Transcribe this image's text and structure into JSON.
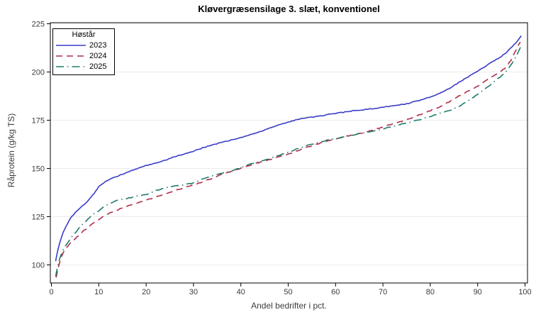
{
  "chart_data": {
    "type": "line",
    "title": "Kløvergræsensilage 3. slæt, konventionel",
    "xlabel": "Andel bedrifter i pct.",
    "ylabel": "Råprotein (g/kg TS)",
    "xlim": [
      0,
      100
    ],
    "ylim": [
      90,
      226
    ],
    "xticks": [
      0,
      10,
      20,
      30,
      40,
      50,
      60,
      70,
      80,
      90,
      100
    ],
    "yticks": [
      100,
      125,
      150,
      175,
      200,
      225
    ],
    "grid": "horizontal-only",
    "gridline_color": "#ebebeb",
    "frame_color": "#000000",
    "legend_position": "inside-top-left",
    "legend_title": "Høstår",
    "series": [
      {
        "name": "2023",
        "color": "#3b3bc8",
        "dash": "solid",
        "x": [
          0.9,
          1,
          1.3,
          1.7,
          2,
          2.5,
          3,
          4,
          5,
          6,
          7,
          8,
          9,
          10,
          11,
          12,
          13,
          15,
          17,
          20,
          23,
          26,
          30,
          33,
          36,
          40,
          44,
          48,
          52,
          56,
          60,
          64,
          68,
          72,
          75,
          78,
          80,
          82,
          84,
          86,
          88,
          90,
          92,
          94,
          95,
          96,
          97,
          98,
          98.7,
          99.2
        ],
        "y": [
          102,
          103.5,
          107,
          111,
          113.5,
          117,
          119.5,
          124,
          127,
          129.5,
          131.5,
          134,
          137,
          140.5,
          142.5,
          144,
          145,
          147,
          149,
          151.5,
          153.5,
          156,
          159,
          161.5,
          163.5,
          166,
          169,
          172.5,
          175.5,
          177,
          178.5,
          180,
          181,
          182.5,
          183.5,
          185.5,
          187,
          189,
          191.5,
          194.5,
          197.5,
          200.5,
          203.5,
          206.5,
          208,
          210,
          212.5,
          215,
          217,
          218.8
        ]
      },
      {
        "name": "2024",
        "color": "#b02c48",
        "dash": "dashed",
        "x": [
          1,
          1.3,
          1.7,
          2,
          2.5,
          3,
          4,
          5,
          6,
          7,
          8,
          9,
          10,
          12,
          14,
          16,
          18,
          20,
          23,
          26,
          30,
          33,
          36,
          38,
          40,
          43,
          46,
          50,
          54,
          58,
          62,
          66,
          70,
          74,
          78,
          80,
          82,
          84,
          86,
          88,
          90,
          92,
          93,
          94,
          95,
          96,
          97,
          97.8,
          98.4,
          99
        ],
        "y": [
          93.5,
          97,
          101,
          103.5,
          106.5,
          108.5,
          111.5,
          113.5,
          116,
          118,
          120,
          122,
          123.5,
          126.5,
          128.5,
          130.5,
          132,
          133.5,
          136,
          138.5,
          141.5,
          144,
          147,
          148.5,
          150,
          152.5,
          154.5,
          157.5,
          161,
          164,
          166.5,
          168.5,
          171.5,
          174.5,
          178,
          180,
          182,
          184.5,
          187.5,
          190,
          192.5,
          196,
          197.5,
          199,
          200.5,
          202.5,
          206,
          210,
          213,
          215.5
        ]
      },
      {
        "name": "2025",
        "color": "#1f7a6b",
        "dash": "dash-dot",
        "x": [
          0.9,
          1,
          1.3,
          1.7,
          2,
          2.5,
          3,
          4,
          5,
          6,
          7,
          8,
          9,
          10,
          11,
          12,
          14,
          16,
          18,
          20,
          22,
          25,
          28,
          30,
          33,
          36,
          38,
          40,
          43,
          46,
          50,
          54,
          58,
          62,
          66,
          70,
          74,
          78,
          80,
          82,
          84,
          86,
          88,
          90,
          92,
          94,
          95,
          96,
          97,
          98,
          98.6,
          99.2
        ],
        "y": [
          94,
          95.5,
          99,
          103,
          105,
          108,
          110,
          113.5,
          116.5,
          119.5,
          122,
          124.5,
          126.5,
          128,
          130,
          131.5,
          133.5,
          134.5,
          135.5,
          136.5,
          138.5,
          140.5,
          141.5,
          142.5,
          145.5,
          147.5,
          148.5,
          150.5,
          153,
          155,
          158.5,
          162,
          164.5,
          166.5,
          168.5,
          170.5,
          173,
          175.5,
          177,
          178.5,
          180,
          182,
          185,
          188.5,
          192,
          196,
          198,
          200.5,
          203.5,
          207.5,
          210.5,
          213.5
        ]
      }
    ]
  }
}
